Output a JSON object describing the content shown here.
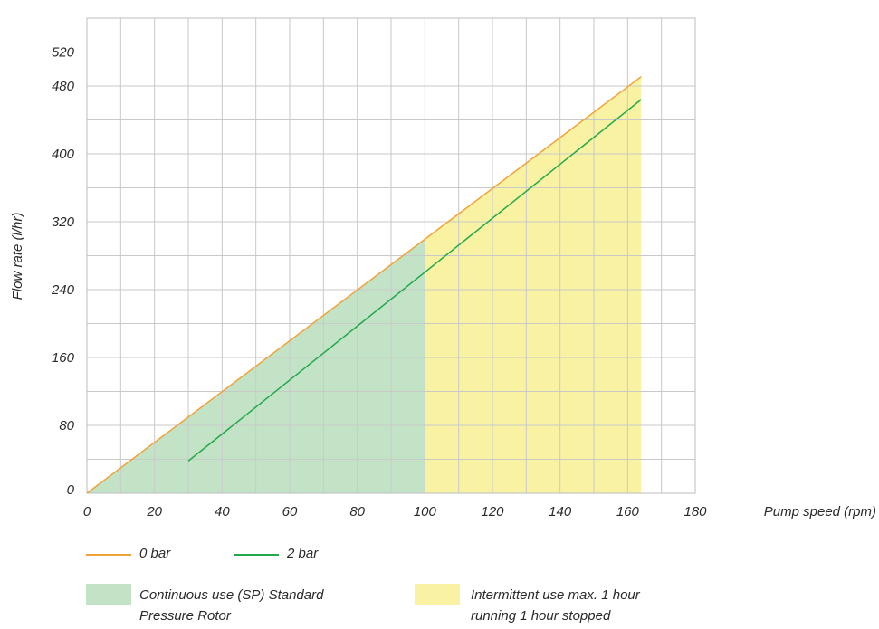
{
  "chart_data": {
    "type": "line",
    "xlabel": "Pump speed (rpm)",
    "ylabel": "Flow rate (l/hr)",
    "xlim": [
      0,
      180
    ],
    "ylim": [
      0,
      560
    ],
    "x_ticks": [
      0,
      20,
      40,
      60,
      80,
      100,
      120,
      140,
      160,
      180
    ],
    "y_ticks": [
      0,
      80,
      160,
      240,
      320,
      400,
      480,
      520
    ],
    "x_tick_labels": [
      "0",
      "20",
      "40",
      "60",
      "80",
      "100",
      "120",
      "140",
      "160",
      "180"
    ],
    "y_tick_labels": [
      "0",
      "80",
      "160",
      "240",
      "320",
      "400",
      "480",
      "520"
    ],
    "grid": true,
    "series": [
      {
        "name": "0 bar",
        "color": "#f0a23a",
        "x": [
          0,
          164
        ],
        "y": [
          0,
          491
        ]
      },
      {
        "name": "2 bar",
        "color": "#23a84c",
        "x": [
          30,
          164
        ],
        "y": [
          38,
          464
        ]
      }
    ],
    "regions": [
      {
        "name": "Continuous use (SP) Standard Pressure Rotor",
        "color": "#c3e3c7",
        "x": [
          0,
          100
        ],
        "upper_boundary_series": "0 bar"
      },
      {
        "name": "Intermittent use max. 1 hour running 1 hour stopped",
        "color": "#f8f2a2",
        "x": [
          100,
          164
        ],
        "upper_boundary_series": "0 bar"
      }
    ]
  },
  "legend": {
    "line_items": [
      {
        "label": "0 bar",
        "color": "#f0a23a"
      },
      {
        "label": "2 bar",
        "color": "#23a84c"
      }
    ],
    "area_items": [
      {
        "line1": "Continuous use (SP) Standard",
        "line2": "Pressure Rotor",
        "color": "#c3e3c7"
      },
      {
        "line1": "Intermittent use max. 1 hour",
        "line2": "running 1 hour stopped",
        "color": "#f8f2a2"
      }
    ]
  }
}
